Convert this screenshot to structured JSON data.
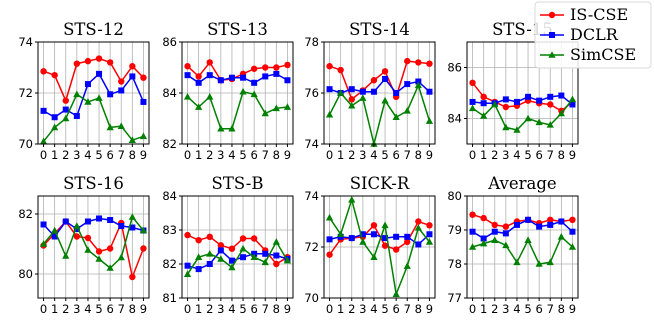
{
  "chart_data": [
    {
      "type": "line",
      "title": "STS-12",
      "x": [
        0,
        1,
        2,
        3,
        4,
        5,
        6,
        7,
        8,
        9
      ],
      "ylim": [
        70,
        74
      ],
      "yticks": [
        70,
        72,
        74
      ],
      "grid": true,
      "series": [
        {
          "name": "IS-CSE",
          "color": "#ff0000",
          "marker": "circle",
          "values": [
            72.85,
            72.7,
            71.7,
            73.15,
            73.25,
            73.35,
            73.2,
            72.45,
            73.05,
            72.6
          ]
        },
        {
          "name": "DCLR",
          "color": "#0000ff",
          "marker": "square",
          "values": [
            71.3,
            71.05,
            71.35,
            71.1,
            72.35,
            72.75,
            71.95,
            72.1,
            72.65,
            71.65
          ]
        },
        {
          "name": "SimCSE",
          "color": "#008000",
          "marker": "triangle",
          "values": [
            70.1,
            70.65,
            71.0,
            71.95,
            71.65,
            71.8,
            70.65,
            70.7,
            70.15,
            70.3
          ]
        }
      ]
    },
    {
      "type": "line",
      "title": "STS-13",
      "x": [
        0,
        1,
        2,
        3,
        4,
        5,
        6,
        7,
        8,
        9
      ],
      "ylim": [
        82,
        86
      ],
      "yticks": [
        82,
        84,
        86
      ],
      "grid": true,
      "series": [
        {
          "name": "IS-CSE",
          "color": "#ff0000",
          "marker": "circle",
          "values": [
            85.05,
            84.65,
            85.2,
            84.5,
            84.55,
            84.75,
            84.95,
            85.0,
            85.0,
            85.1
          ]
        },
        {
          "name": "DCLR",
          "color": "#0000ff",
          "marker": "square",
          "values": [
            84.7,
            84.4,
            84.7,
            84.5,
            84.6,
            84.6,
            84.4,
            84.65,
            84.75,
            84.5
          ]
        },
        {
          "name": "SimCSE",
          "color": "#008000",
          "marker": "triangle",
          "values": [
            83.85,
            83.45,
            83.85,
            82.6,
            82.6,
            84.05,
            83.95,
            83.2,
            83.4,
            83.45
          ]
        }
      ]
    },
    {
      "type": "line",
      "title": "STS-14",
      "x": [
        0,
        1,
        2,
        3,
        4,
        5,
        6,
        7,
        8,
        9
      ],
      "ylim": [
        74,
        78
      ],
      "yticks": [
        74,
        76,
        78
      ],
      "grid": true,
      "series": [
        {
          "name": "IS-CSE",
          "color": "#ff0000",
          "marker": "circle",
          "values": [
            77.05,
            76.9,
            75.75,
            76.1,
            76.5,
            76.85,
            75.85,
            77.25,
            77.2,
            77.15
          ]
        },
        {
          "name": "DCLR",
          "color": "#0000ff",
          "marker": "square",
          "values": [
            76.15,
            76.0,
            76.15,
            76.05,
            76.05,
            76.55,
            76.0,
            76.35,
            76.45,
            76.05
          ]
        },
        {
          "name": "SimCSE",
          "color": "#008000",
          "marker": "triangle",
          "values": [
            75.15,
            76.0,
            75.5,
            75.8,
            74.0,
            75.7,
            75.05,
            75.3,
            76.3,
            74.9
          ]
        }
      ]
    },
    {
      "type": "line",
      "title": "STS-15",
      "x": [
        0,
        1,
        2,
        3,
        4,
        5,
        6,
        7,
        8,
        9
      ],
      "ylim": [
        83,
        87
      ],
      "yticks": [
        84,
        86
      ],
      "grid": true,
      "series": [
        {
          "name": "IS-CSE",
          "color": "#ff0000",
          "marker": "circle",
          "values": [
            85.4,
            84.85,
            84.65,
            84.45,
            84.5,
            84.7,
            84.6,
            84.55,
            84.3,
            84.65
          ]
        },
        {
          "name": "DCLR",
          "color": "#0000ff",
          "marker": "square",
          "values": [
            84.65,
            84.6,
            84.6,
            84.75,
            84.65,
            84.85,
            84.7,
            84.85,
            84.9,
            84.55
          ]
        },
        {
          "name": "SimCSE",
          "color": "#008000",
          "marker": "triangle",
          "values": [
            84.4,
            84.1,
            84.55,
            83.65,
            83.55,
            84.0,
            83.85,
            83.75,
            84.2,
            84.75
          ]
        }
      ]
    },
    {
      "type": "line",
      "title": "STS-16",
      "x": [
        0,
        1,
        2,
        3,
        4,
        5,
        6,
        7,
        8,
        9
      ],
      "ylim": [
        79.2,
        82.6
      ],
      "yticks": [
        80,
        82
      ],
      "grid": true,
      "series": [
        {
          "name": "IS-CSE",
          "color": "#ff0000",
          "marker": "circle",
          "values": [
            80.95,
            81.35,
            81.75,
            81.25,
            81.2,
            80.75,
            80.85,
            81.7,
            79.9,
            80.85
          ]
        },
        {
          "name": "DCLR",
          "color": "#0000ff",
          "marker": "square",
          "values": [
            81.65,
            81.25,
            81.75,
            81.5,
            81.75,
            81.85,
            81.8,
            81.6,
            81.55,
            81.45
          ]
        },
        {
          "name": "SimCSE",
          "color": "#008000",
          "marker": "triangle",
          "values": [
            81.0,
            81.45,
            80.6,
            81.6,
            80.8,
            80.5,
            80.2,
            80.55,
            81.9,
            81.45
          ]
        }
      ]
    },
    {
      "type": "line",
      "title": "STS-B",
      "x": [
        0,
        1,
        2,
        3,
        4,
        5,
        6,
        7,
        8,
        9
      ],
      "ylim": [
        81,
        84
      ],
      "yticks": [
        81,
        82,
        83,
        84
      ],
      "grid": true,
      "series": [
        {
          "name": "IS-CSE",
          "color": "#ff0000",
          "marker": "circle",
          "values": [
            82.85,
            82.7,
            82.8,
            82.55,
            82.45,
            82.75,
            82.75,
            82.4,
            82.0,
            82.2
          ]
        },
        {
          "name": "DCLR",
          "color": "#0000ff",
          "marker": "square",
          "values": [
            81.95,
            81.85,
            82.0,
            82.4,
            82.1,
            82.2,
            82.3,
            82.3,
            82.25,
            82.15
          ]
        },
        {
          "name": "SimCSE",
          "color": "#008000",
          "marker": "triangle",
          "values": [
            81.7,
            82.2,
            82.3,
            82.15,
            81.9,
            82.45,
            82.2,
            82.05,
            82.65,
            82.1
          ]
        }
      ]
    },
    {
      "type": "line",
      "title": "SICK-R",
      "x": [
        0,
        1,
        2,
        3,
        4,
        5,
        6,
        7,
        8,
        9
      ],
      "ylim": [
        70,
        74
      ],
      "yticks": [
        70,
        72,
        74
      ],
      "grid": true,
      "series": [
        {
          "name": "IS-CSE",
          "color": "#ff0000",
          "marker": "circle",
          "values": [
            71.7,
            72.3,
            72.35,
            72.4,
            72.85,
            72.05,
            71.9,
            72.2,
            73.0,
            72.85
          ]
        },
        {
          "name": "DCLR",
          "color": "#0000ff",
          "marker": "square",
          "values": [
            72.3,
            72.4,
            72.35,
            72.5,
            72.5,
            72.35,
            72.4,
            72.4,
            72.1,
            72.5
          ]
        },
        {
          "name": "SimCSE",
          "color": "#008000",
          "marker": "triangle",
          "values": [
            73.15,
            72.5,
            73.85,
            72.2,
            71.6,
            72.85,
            70.15,
            71.25,
            72.75,
            72.2
          ]
        }
      ]
    },
    {
      "type": "line",
      "title": "Average",
      "x": [
        0,
        1,
        2,
        3,
        4,
        5,
        6,
        7,
        8,
        9
      ],
      "ylim": [
        77,
        80
      ],
      "yticks": [
        77,
        78,
        79,
        80
      ],
      "grid": true,
      "series": [
        {
          "name": "IS-CSE",
          "color": "#ff0000",
          "marker": "circle",
          "values": [
            79.45,
            79.35,
            79.15,
            79.1,
            79.25,
            79.3,
            79.2,
            79.3,
            79.25,
            79.3
          ]
        },
        {
          "name": "DCLR",
          "color": "#0000ff",
          "marker": "square",
          "values": [
            78.95,
            78.75,
            78.95,
            78.9,
            79.15,
            79.3,
            79.1,
            79.15,
            79.25,
            78.95
          ]
        },
        {
          "name": "SimCSE",
          "color": "#008000",
          "marker": "triangle",
          "values": [
            78.5,
            78.6,
            78.7,
            78.55,
            78.05,
            78.7,
            78.0,
            78.05,
            78.8,
            78.5
          ]
        }
      ]
    }
  ],
  "legend": {
    "placement": "top-right",
    "entries": [
      {
        "label": "IS-CSE",
        "color": "#ff0000",
        "marker": "circle"
      },
      {
        "label": "DCLR",
        "color": "#0000ff",
        "marker": "square"
      },
      {
        "label": "SimCSE",
        "color": "#008000",
        "marker": "triangle"
      }
    ]
  }
}
